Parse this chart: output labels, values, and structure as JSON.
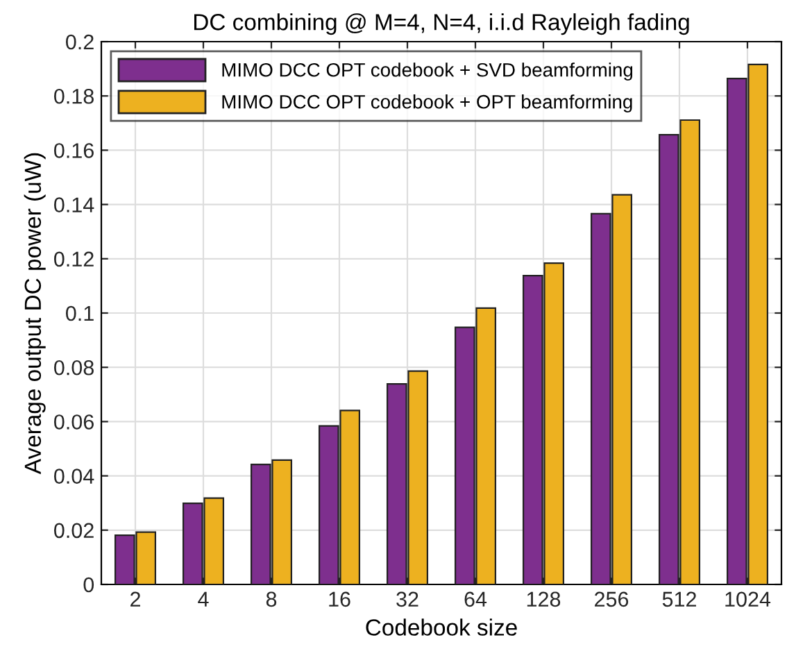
{
  "chart_data": {
    "type": "bar",
    "title": "DC combining @ M=4, N=4, i.i.d Rayleigh fading",
    "xlabel": "Codebook size",
    "ylabel": "Average output DC power (uW)",
    "categories": [
      "2",
      "4",
      "8",
      "16",
      "32",
      "64",
      "128",
      "256",
      "512",
      "1024"
    ],
    "series": [
      {
        "name": "MIMO DCC OPT codebook + SVD beamforming",
        "color": "#7e2f8e",
        "values": [
          0.0181,
          0.0299,
          0.0442,
          0.0584,
          0.0739,
          0.0947,
          0.1138,
          0.1366,
          0.1657,
          0.1864
        ]
      },
      {
        "name": "MIMO DCC OPT codebook + OPT beamforming",
        "color": "#edb120",
        "values": [
          0.0193,
          0.0318,
          0.0458,
          0.0641,
          0.0786,
          0.1018,
          0.1184,
          0.1436,
          0.1711,
          0.1916
        ]
      }
    ],
    "ylim": [
      0,
      0.2
    ],
    "yticks": [
      0,
      0.02,
      0.04,
      0.06,
      0.08,
      {
        "value": 0.1,
        "label": "0.1"
      },
      0.12,
      0.14,
      0.16,
      0.18,
      {
        "value": 0.2,
        "label": "0.2"
      }
    ],
    "grid": true,
    "legend": "top left"
  }
}
